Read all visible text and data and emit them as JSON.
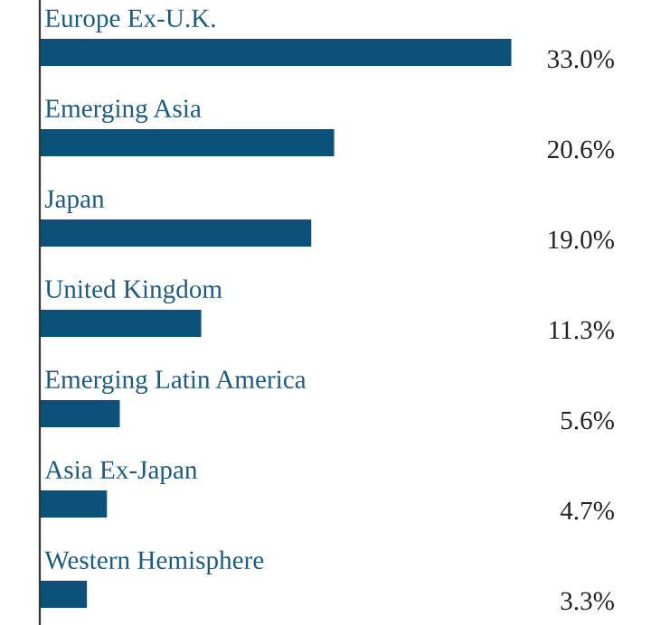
{
  "chart_data": {
    "type": "bar",
    "orientation": "horizontal",
    "categories": [
      "Europe Ex-U.K.",
      "Emerging Asia",
      "Japan",
      "United Kingdom",
      "Emerging Latin America",
      "Asia Ex-Japan",
      "Western Hemisphere"
    ],
    "values": [
      33.0,
      20.6,
      19.0,
      11.3,
      5.6,
      4.7,
      3.3
    ],
    "value_labels": [
      "33.0%",
      "20.6%",
      "19.0%",
      "11.3%",
      "5.6%",
      "4.7%",
      "3.3%"
    ],
    "color": "#0b5179"
  }
}
